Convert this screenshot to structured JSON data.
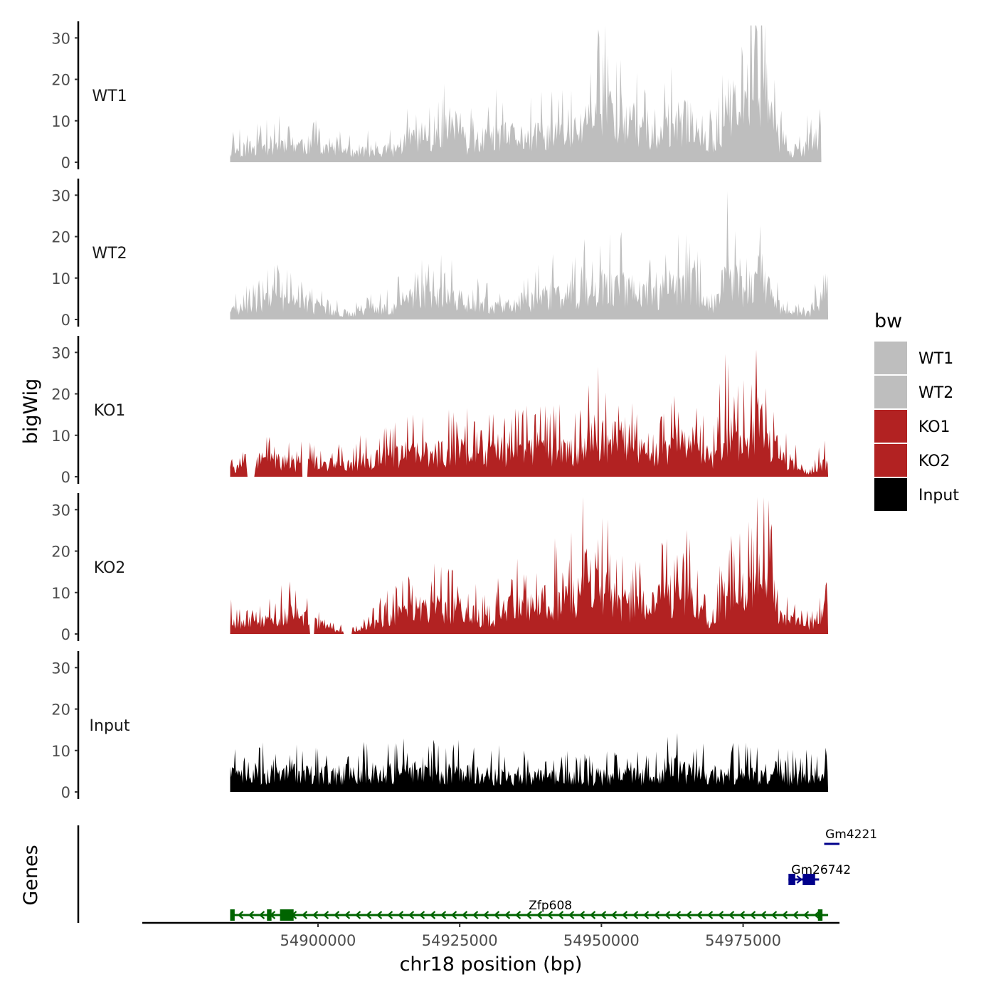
{
  "chart_data": {
    "type": "area",
    "title": "",
    "ylabel": "bigWig",
    "xlabel": "chr18 position (bp)",
    "genes_label": "Genes",
    "xlim": [
      54869000,
      54992000
    ],
    "ylim": [
      0,
      34
    ],
    "y_ticks": [
      "0",
      "10",
      "20",
      "30"
    ],
    "x_ticks": [
      {
        "value": 54900000,
        "label": "54900000"
      },
      {
        "value": 54925000,
        "label": "54925000"
      },
      {
        "value": 54950000,
        "label": "54950000"
      },
      {
        "value": 54975000,
        "label": "54975000"
      }
    ],
    "legend": {
      "title": "bw",
      "position": "right",
      "items": [
        {
          "label": "WT1",
          "color": "#bebebe"
        },
        {
          "label": "WT2",
          "color": "#bebebe"
        },
        {
          "label": "KO1",
          "color": "#b22222"
        },
        {
          "label": "KO2",
          "color": "#b22222"
        },
        {
          "label": "Input",
          "color": "#000000"
        }
      ]
    },
    "series": [
      {
        "name": "WT1",
        "color": "#bebebe",
        "seed": 11,
        "dips": [],
        "x": [
          54884500,
          54895000,
          54905000,
          54913000,
          54916000,
          54922000,
          54924500,
          54926000,
          54931000,
          54938000,
          54945000,
          54948500,
          54951000,
          54956000,
          54960000,
          54963000,
          54966000,
          54970000,
          54972000,
          54975000,
          54978000,
          54978700,
          54980000,
          54982000,
          54985000,
          54987000,
          54990000,
          54988000,
          54988500,
          54988800
        ],
        "y": [
          4,
          7,
          4,
          4,
          8,
          11,
          15,
          6,
          9,
          9,
          10,
          16,
          18,
          13,
          8,
          13,
          15,
          5,
          20,
          16,
          24,
          30,
          15,
          5,
          4,
          7,
          10,
          3,
          10,
          15
        ]
      },
      {
        "name": "WT2",
        "color": "#bebebe",
        "seed": 23,
        "dips": [],
        "x": [
          54884500,
          54893000,
          54905000,
          54913000,
          54917000,
          54925000,
          54932000,
          54940000,
          54945000,
          54950000,
          54955000,
          54960000,
          54963000,
          54966000,
          54970000,
          54972000,
          54975000,
          54977500,
          54978200,
          54980000,
          54982000,
          54985000,
          54987000,
          54988000,
          54990000
        ],
        "y": [
          3,
          7,
          2,
          4,
          9,
          7,
          4,
          8,
          9,
          12,
          11,
          8,
          11,
          12,
          4,
          16,
          10,
          15,
          16,
          8,
          3,
          2,
          2,
          6,
          7
        ]
      },
      {
        "name": "KO1",
        "color": "#b22222",
        "seed": 37,
        "dips": [
          [
            54887500,
            54888800
          ],
          [
            54897200,
            54898200
          ]
        ],
        "x": [
          54884500,
          54889000,
          54892000,
          54896000,
          54899000,
          54903000,
          54910000,
          54915000,
          54920000,
          54926000,
          54932000,
          54940000,
          54946000,
          54948000,
          54951000,
          54954000,
          54958000,
          54961000,
          54963000,
          54966000,
          54970000,
          54972000,
          54974500,
          54976000,
          54977800,
          54979000,
          54982000,
          54985000,
          54987000,
          54988500,
          54990000
        ],
        "y": [
          3,
          3,
          6,
          4,
          5,
          4,
          6,
          8,
          8,
          9,
          8,
          9,
          9,
          15,
          13,
          14,
          7,
          8,
          10,
          12,
          7,
          17,
          14,
          14,
          20,
          14,
          7,
          4,
          1,
          4,
          6
        ]
      },
      {
        "name": "KO2",
        "color": "#b22222",
        "seed": 53,
        "dips": [
          [
            54898500,
            54899300
          ],
          [
            54904500,
            54906000
          ]
        ],
        "x": [
          54884500,
          54888000,
          54892000,
          54895000,
          54899000,
          54902000,
          54905000,
          54909000,
          54913000,
          54918000,
          54924000,
          54930000,
          54935000,
          54940000,
          54945000,
          54948000,
          54950000,
          54952000,
          54956000,
          54960000,
          54963000,
          54966000,
          54969000,
          54972000,
          54975000,
          54977000,
          54978500,
          54979500,
          54982000,
          54985000,
          54988000,
          54990000
        ],
        "y": [
          5,
          3,
          5,
          7,
          5,
          2,
          1,
          3,
          6,
          9,
          9,
          5,
          10,
          11,
          13,
          23,
          15,
          13,
          9,
          11,
          14,
          12,
          4,
          13,
          14,
          15,
          28,
          18,
          5,
          4,
          3,
          13
        ]
      },
      {
        "name": "Input",
        "color": "#000000",
        "seed": 71,
        "dips": [],
        "x": [
          54884500,
          54900000,
          54915000,
          54930000,
          54945000,
          54955000,
          54960000,
          54963000,
          54966000,
          54975000,
          54985000,
          54990000
        ],
        "y": [
          7,
          6,
          7,
          6,
          5,
          6,
          5,
          9,
          6,
          6,
          5,
          7
        ]
      }
    ],
    "genes": [
      {
        "name": "Zfp608",
        "strand": "-",
        "start": 54884500,
        "end": 54990000,
        "color": "#006400",
        "row": 0,
        "label_pos": 54941000,
        "exons": [
          [
            54884500,
            54885300
          ],
          [
            54891000,
            54891800
          ],
          [
            54893300,
            54895700
          ],
          [
            54988200,
            54989000
          ]
        ]
      },
      {
        "name": "Gm26742",
        "strand": "+",
        "start": 54983000,
        "end": 54988400,
        "color": "#00008b",
        "row": 1,
        "label_pos": 54983500,
        "exons": [
          [
            54983000,
            54984200
          ],
          [
            54985500,
            54987700
          ]
        ]
      },
      {
        "name": "Gm4221",
        "strand": "+",
        "start": 54989300,
        "end": 54992000,
        "color": "#00008b",
        "row": 2,
        "label_pos": 54989500,
        "exons": []
      }
    ]
  }
}
